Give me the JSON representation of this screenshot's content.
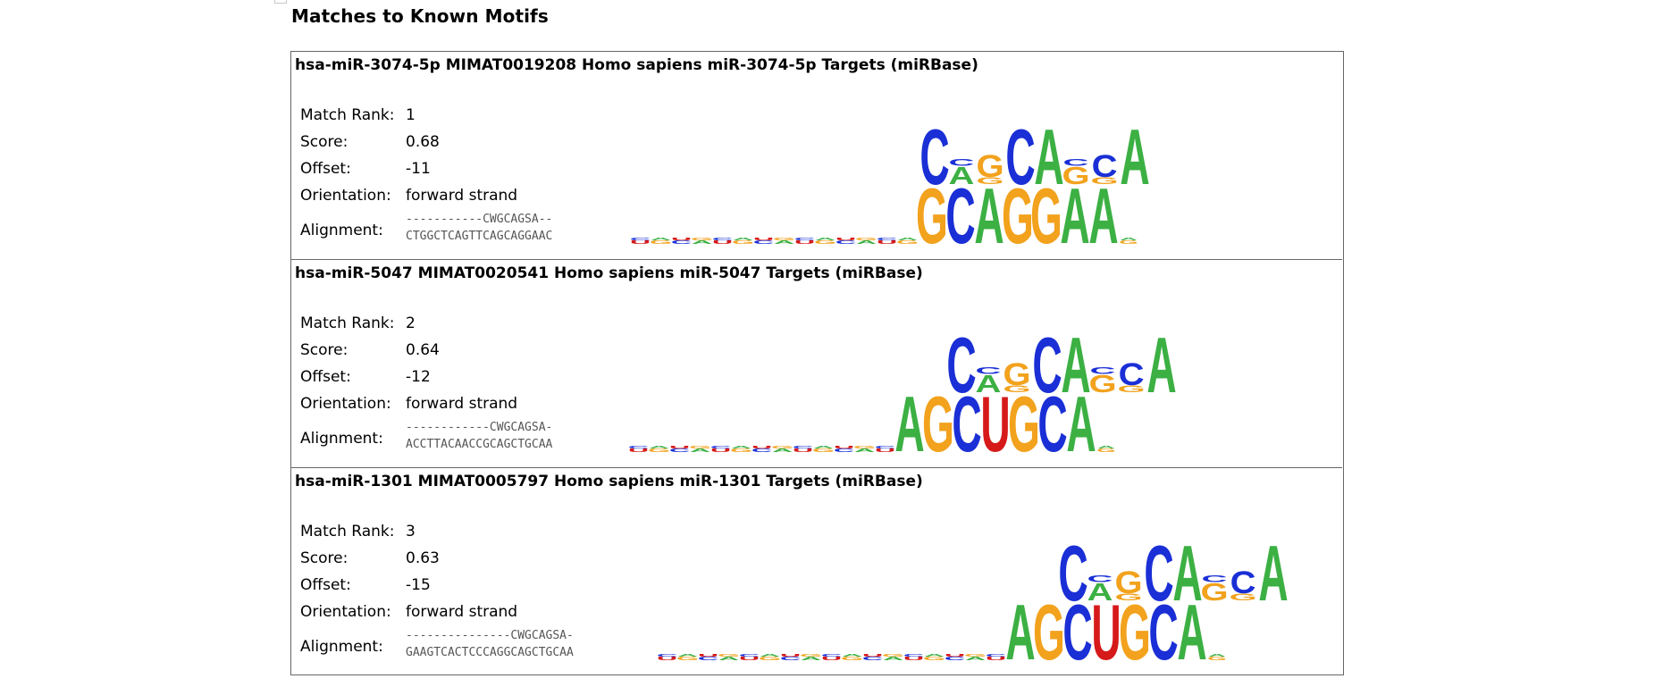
{
  "section_title": "Matches to Known Motifs",
  "labels": {
    "rank": "Match Rank:",
    "score": "Score:",
    "offset": "Offset:",
    "orientation": "Orientation:",
    "alignment": "Alignment:"
  },
  "colors": {
    "A": "#3cb043",
    "C": "#1a2fd6",
    "G": "#f2a21d",
    "U": "#d61a1a"
  },
  "matches": [
    {
      "title": "hsa-miR-3074-5p MIMAT0019208 Homo sapiens miR-3074-5p Targets (miRBase)",
      "rank": "1",
      "score": "0.68",
      "offset": "-11",
      "orientation": "forward strand",
      "align_query": "-----------CWGCAGSA--",
      "align_target": "CTGGCTCAGTTCAGCAGGAAC",
      "query_motif": "CAGCAGCA",
      "target_motif": "GCAGGAA"
    },
    {
      "title": "hsa-miR-5047 MIMAT0020541 Homo sapiens miR-5047 Targets (miRBase)",
      "rank": "2",
      "score": "0.64",
      "offset": "-12",
      "orientation": "forward strand",
      "align_query": "------------CWGCAGSA-",
      "align_target": "ACCTTACAACCGCAGCTGCAA",
      "query_motif": "CAGCAGCA",
      "target_motif": "AGCUGCA"
    },
    {
      "title": "hsa-miR-1301 MIMAT0005797 Homo sapiens miR-1301 Targets (miRBase)",
      "rank": "3",
      "score": "0.63",
      "offset": "-15",
      "orientation": "forward strand",
      "align_query": "---------------CWGCAGSA-",
      "align_target": "GAAGTCACTCCCAGGCAGCTGCAA",
      "query_motif": "CAGCAGCA",
      "target_motif": "AGCUGCA"
    }
  ]
}
